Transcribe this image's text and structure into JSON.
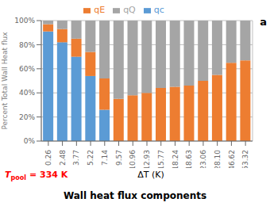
{
  "chart_data": {
    "type": "bar",
    "stacked": true,
    "title": "Wall heat flux components",
    "y_label": "Percent Total Wall Heat flux",
    "x_label": "ΔT (K)",
    "categories": [
      "0.26",
      "2.48",
      "3.77",
      "5.22",
      "7.14",
      "9.57",
      "10.96",
      "12.93",
      "15.77",
      "18.24",
      "18.63",
      "23.06",
      "28.10",
      "46.62",
      "53.32"
    ],
    "series": [
      {
        "name": "qc",
        "color": "#5B9BD5",
        "values": [
          91,
          82,
          70,
          54,
          26,
          0,
          0,
          0,
          0,
          0,
          0,
          0,
          0,
          0,
          0
        ]
      },
      {
        "name": "qE",
        "color": "#ED7D31",
        "values": [
          6,
          11,
          15,
          20,
          26,
          35,
          38,
          40,
          44,
          45,
          46,
          50,
          55,
          65,
          67
        ]
      },
      {
        "name": "qQ",
        "color": "#A5A5A5",
        "values": [
          3,
          7,
          15,
          26,
          48,
          65,
          62,
          60,
          56,
          55,
          54,
          50,
          45,
          35,
          33
        ]
      }
    ],
    "ylim": [
      0,
      100
    ],
    "yticks": [
      {
        "value": 0,
        "label": "0%"
      },
      {
        "value": 20,
        "label": "20%"
      },
      {
        "value": 40,
        "label": "40%"
      },
      {
        "value": 60,
        "label": "60%"
      },
      {
        "value": 80,
        "label": "80%"
      },
      {
        "value": 100,
        "label": "100%"
      }
    ],
    "grid": true,
    "legend": "top",
    "annotations": [
      {
        "text": "a"
      },
      {
        "parts": [
          "T",
          "pool",
          "= 334 K"
        ],
        "color": "#FF0000"
      }
    ]
  }
}
